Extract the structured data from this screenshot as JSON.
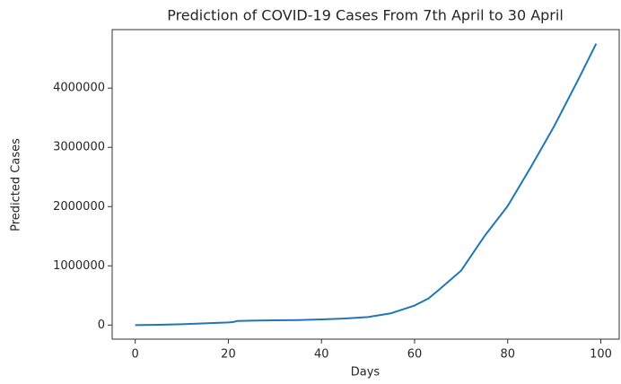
{
  "chart_data": {
    "type": "line",
    "title": "Prediction of COVID-19 Cases From 7th April to 30 April",
    "xlabel": "Days",
    "ylabel": "Predicted Cases",
    "x": [
      0,
      5,
      10,
      15,
      20,
      21,
      22,
      25,
      30,
      35,
      40,
      45,
      50,
      55,
      60,
      63,
      65,
      70,
      75,
      80,
      85,
      90,
      95,
      99
    ],
    "series": [
      {
        "name": "Predicted Cases",
        "color": "#1f77b4",
        "values": [
          0,
          5000,
          15000,
          30000,
          45000,
          50000,
          70000,
          75000,
          80000,
          85000,
          95000,
          110000,
          135000,
          200000,
          330000,
          450000,
          580000,
          920000,
          1500000,
          2010000,
          2670000,
          3360000,
          4120000,
          4750000
        ]
      }
    ],
    "xlim": [
      -4.95,
      103.95
    ],
    "xticks": [
      0,
      20,
      40,
      60,
      80,
      100
    ],
    "ylim": [
      -237500,
      4987500
    ],
    "yticks": [
      0,
      1000000,
      2000000,
      3000000,
      4000000
    ],
    "grid": false
  }
}
